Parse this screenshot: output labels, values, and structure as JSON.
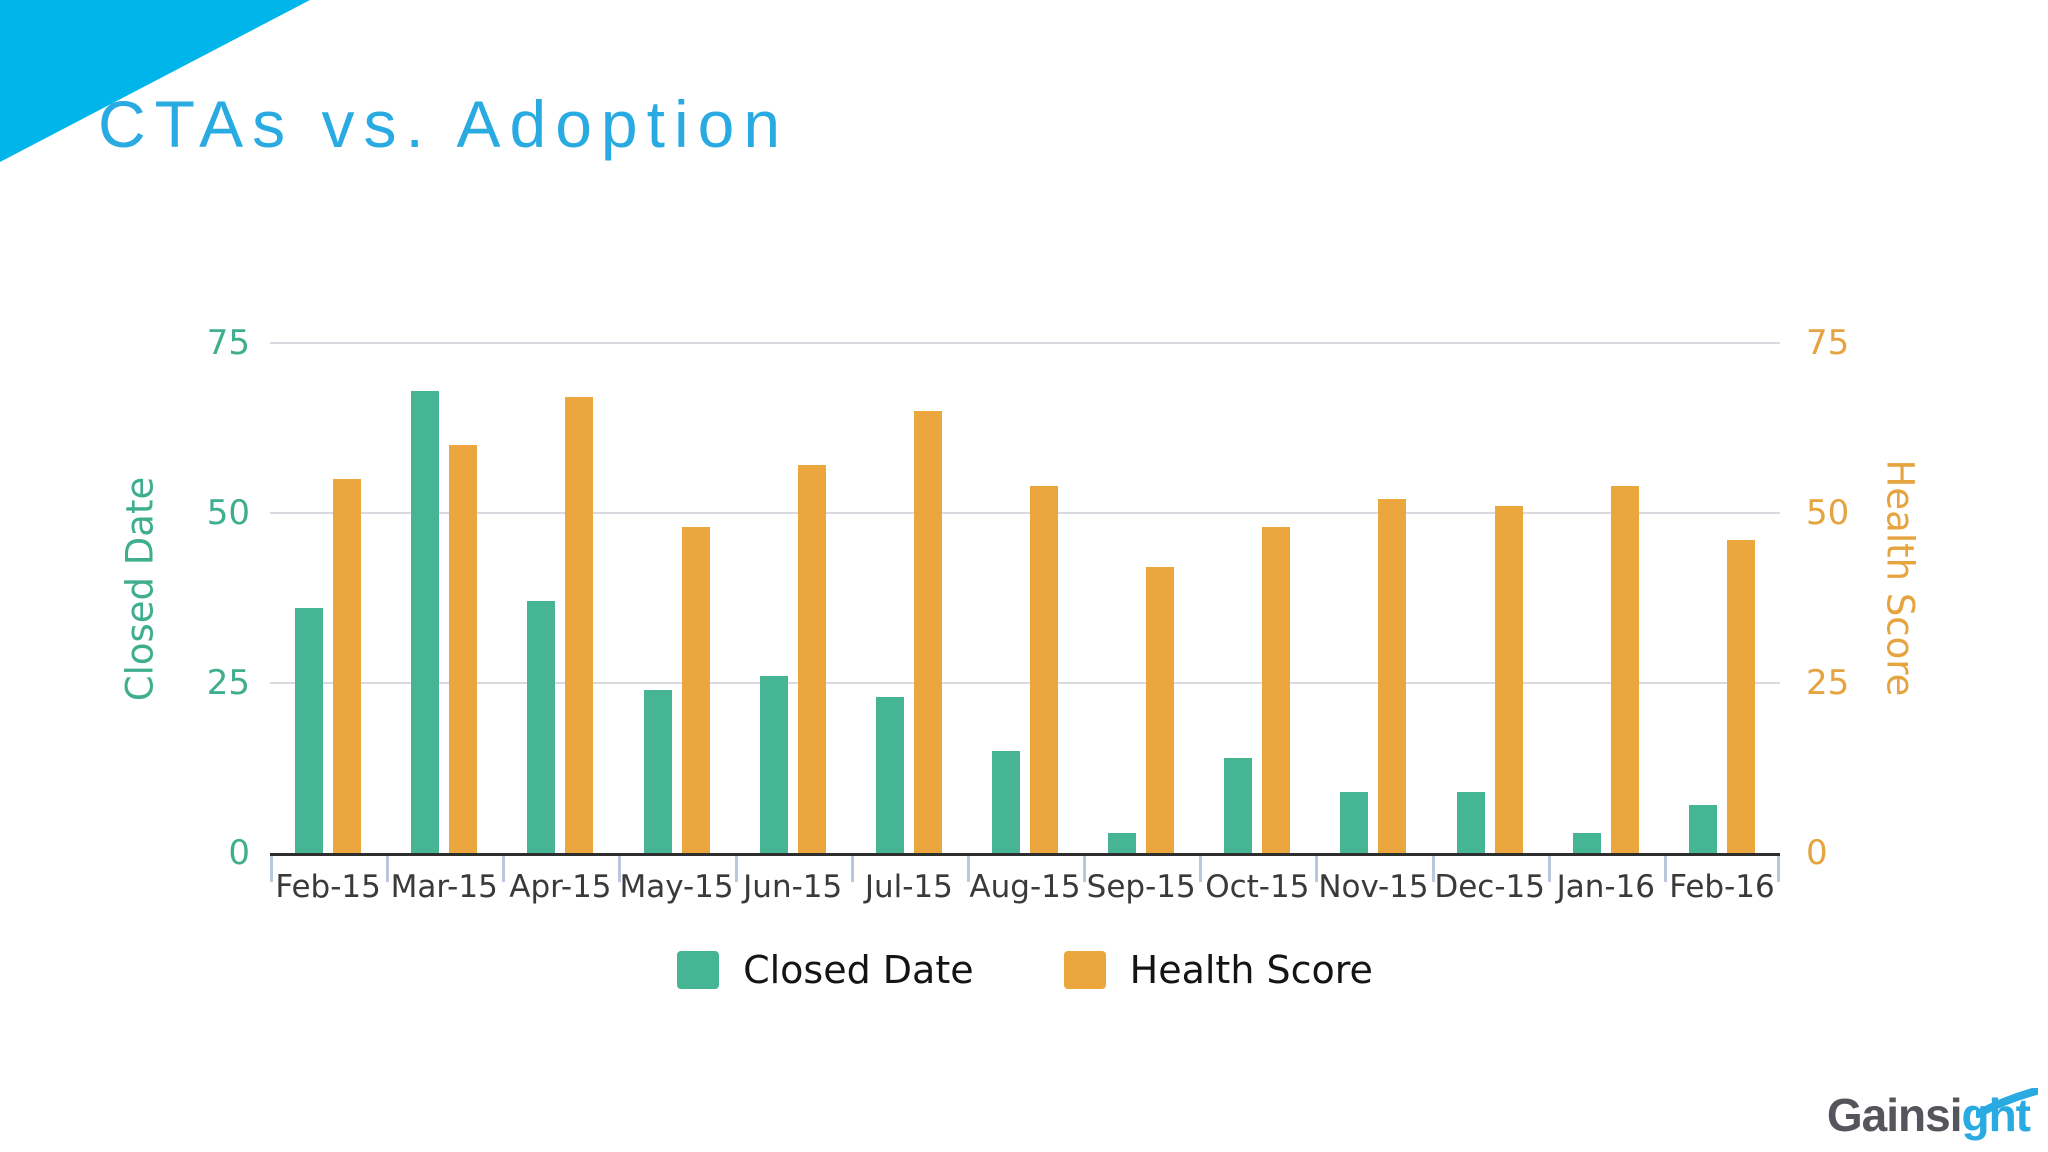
{
  "slide": {
    "title": "CTAs vs. Adoption",
    "title_color": "#29ABE2",
    "triangle_color": "#00B5EA"
  },
  "chart_data": {
    "type": "bar",
    "title": "",
    "categories": [
      "Feb-15",
      "Mar-15",
      "Apr-15",
      "May-15",
      "Jun-15",
      "Jul-15",
      "Aug-15",
      "Sep-15",
      "Oct-15",
      "Nov-15",
      "Dec-15",
      "Jan-16",
      "Feb-16"
    ],
    "series": [
      {
        "name": "Closed Date",
        "axis": "left",
        "color": "#45B594",
        "values": [
          36,
          68,
          37,
          24,
          26,
          23,
          15,
          3,
          14,
          9,
          9,
          3,
          7
        ]
      },
      {
        "name": "Health Score",
        "axis": "right",
        "color": "#EBA73E",
        "values": [
          55,
          60,
          67,
          48,
          57,
          65,
          54,
          42,
          48,
          52,
          51,
          54,
          46
        ]
      }
    ],
    "left_axis": {
      "label": "Closed Date",
      "ticks": [
        0,
        25,
        50,
        75
      ],
      "range": [
        0,
        75
      ],
      "color": "#3FAE8E"
    },
    "right_axis": {
      "label": "Health Score",
      "ticks": [
        0,
        25,
        50,
        75
      ],
      "range": [
        0,
        75
      ],
      "color": "#E6A440"
    },
    "grid": true,
    "gridline_color": "#D9D9DF",
    "axis_line_color": "#2E2E2E",
    "x_tick_color": "#B9C7DF",
    "x_label_color": "#3A3A3A",
    "legend_position": "bottom"
  },
  "legend": {
    "items": [
      {
        "label": "Closed Date",
        "color": "#45B594"
      },
      {
        "label": "Health Score",
        "color": "#EBA73E"
      }
    ]
  },
  "logo": {
    "gray": "Gainsi",
    "blue": "ght",
    "gray_color": "#54565B",
    "blue_color": "#29ABE2"
  }
}
